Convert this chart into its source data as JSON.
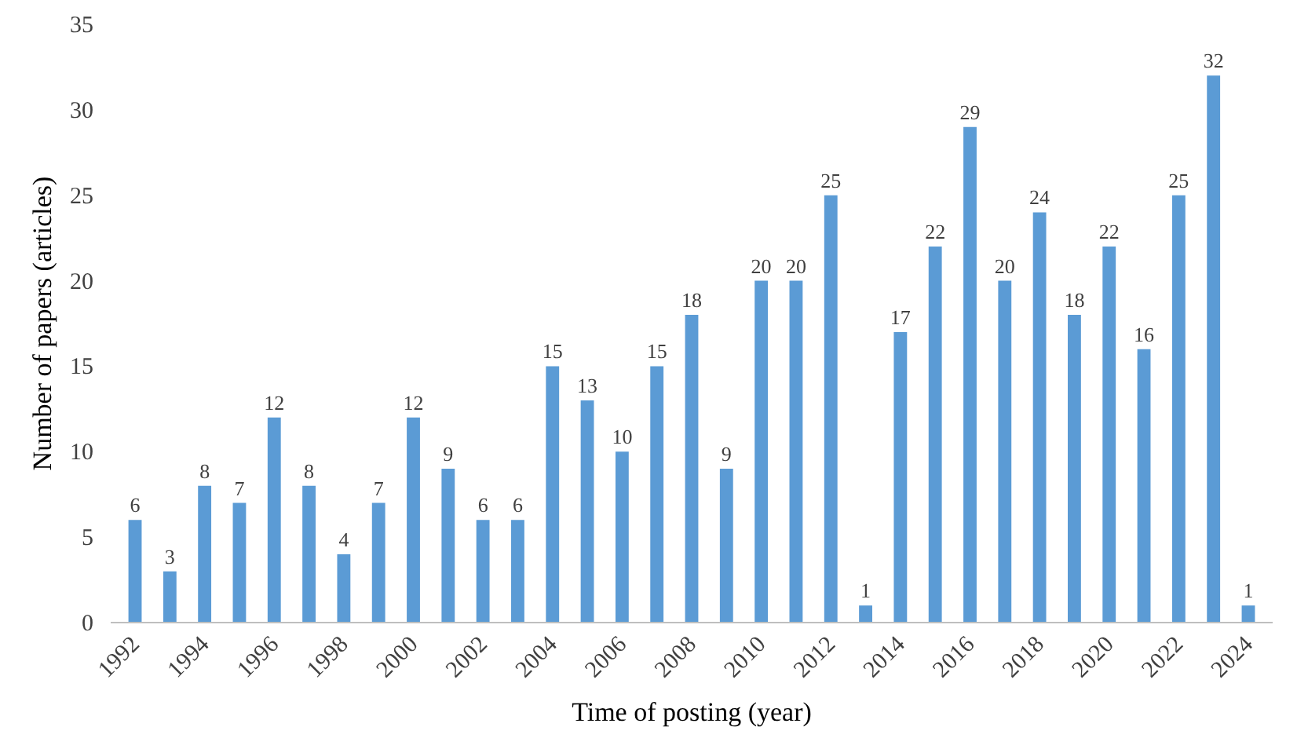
{
  "chart_data": {
    "type": "bar",
    "xlabel": "Time of posting (year)",
    "ylabel": "Number of papers (articles)",
    "categories": [
      "1992",
      null,
      "1994",
      null,
      "1996",
      null,
      "1998",
      null,
      "2000",
      null,
      "2002",
      null,
      "2004",
      null,
      "2006",
      null,
      "2008",
      null,
      "2010",
      null,
      "2012",
      null,
      "2014",
      null,
      "2016",
      null,
      "2018",
      null,
      "2020",
      null,
      "2022",
      null,
      "2024"
    ],
    "values": [
      6,
      3,
      8,
      7,
      12,
      8,
      4,
      7,
      12,
      9,
      6,
      6,
      15,
      13,
      10,
      15,
      18,
      9,
      20,
      20,
      25,
      1,
      17,
      22,
      29,
      20,
      24,
      18,
      22,
      16,
      25,
      32,
      1
    ],
    "color": "#5b9bd5",
    "ylim": [
      0,
      35
    ],
    "yticks": [
      0,
      5,
      10,
      15,
      20,
      25,
      30,
      35
    ],
    "grid": false,
    "data_labels": true
  }
}
